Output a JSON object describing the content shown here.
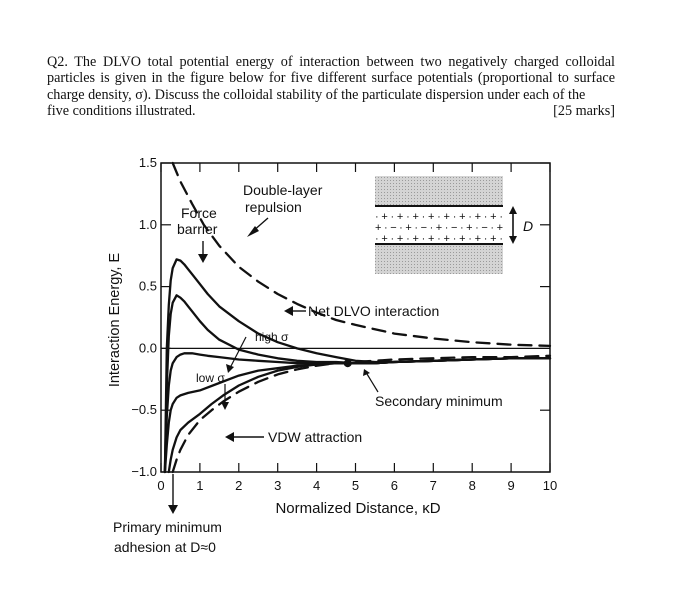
{
  "question": {
    "text": "Q2. The DLVO total potential energy of interaction between two negatively charged colloidal particles is given in the figure below for five different surface potentials (proportional to surface charge density, σ). Discuss the colloidal stability of the particulate dispersion under each of the",
    "last_line": "five conditions illustrated.",
    "marks": "[25 marks]"
  },
  "chart_data": {
    "type": "line",
    "title": "",
    "xlabel": "Normalized Distance, κD",
    "ylabel": "Interaction Energy, E",
    "xlim": [
      0,
      10
    ],
    "ylim": [
      -1.0,
      1.5
    ],
    "xticks": [
      "0",
      "1",
      "2",
      "3",
      "4",
      "5",
      "6",
      "7",
      "8",
      "9",
      "10"
    ],
    "yticks": [
      "1.5",
      "1.0",
      "0.5",
      "0.0",
      "−0.5",
      "−1.0"
    ],
    "ytick_values": [
      1.5,
      1.0,
      0.5,
      0.0,
      -0.5,
      -1.0
    ],
    "grid": false,
    "series": [
      {
        "style": "solid",
        "x": [
          0.1,
          0.15,
          0.2,
          0.25,
          0.3,
          0.4,
          0.5,
          0.6,
          0.7,
          0.8,
          1.0,
          1.2,
          1.5,
          2.0,
          2.5,
          3.0,
          3.5,
          4.0,
          4.5,
          5.0,
          5.5,
          6.0,
          7.0,
          8.0,
          9.0,
          10.0
        ],
        "y": [
          -1.0,
          0.0,
          0.35,
          0.55,
          0.65,
          0.72,
          0.71,
          0.68,
          0.64,
          0.6,
          0.52,
          0.44,
          0.34,
          0.22,
          0.12,
          0.05,
          0.0,
          -0.04,
          -0.07,
          -0.1,
          -0.11,
          -0.11,
          -0.1,
          -0.09,
          -0.08,
          -0.08
        ]
      },
      {
        "style": "solid",
        "x": [
          0.1,
          0.15,
          0.2,
          0.25,
          0.3,
          0.4,
          0.5,
          0.6,
          0.7,
          0.8,
          1.0,
          1.2,
          1.5,
          2.0,
          2.5,
          3.0,
          3.5,
          4.0,
          4.5,
          5.0,
          5.5,
          6.0,
          7.0,
          8.0,
          9.0,
          10.0
        ],
        "y": [
          -1.0,
          -0.3,
          0.1,
          0.28,
          0.37,
          0.43,
          0.41,
          0.38,
          0.34,
          0.3,
          0.22,
          0.15,
          0.07,
          -0.01,
          -0.05,
          -0.08,
          -0.1,
          -0.11,
          -0.11,
          -0.12,
          -0.12,
          -0.11,
          -0.1,
          -0.09,
          -0.08,
          -0.08
        ]
      },
      {
        "style": "solid",
        "x": [
          0.1,
          0.15,
          0.2,
          0.25,
          0.3,
          0.4,
          0.5,
          0.6,
          0.8,
          1.0,
          1.2,
          1.5,
          2.0,
          2.5,
          3.0,
          3.5,
          4.0,
          4.5,
          5.0,
          5.5,
          6.0,
          7.0,
          8.0,
          9.0,
          10.0
        ],
        "y": [
          -1.0,
          -0.55,
          -0.3,
          -0.18,
          -0.12,
          -0.07,
          -0.05,
          -0.04,
          -0.04,
          -0.05,
          -0.06,
          -0.07,
          -0.09,
          -0.1,
          -0.11,
          -0.12,
          -0.12,
          -0.12,
          -0.12,
          -0.12,
          -0.11,
          -0.1,
          -0.09,
          -0.08,
          -0.08
        ]
      },
      {
        "style": "solid",
        "x": [
          0.1,
          0.15,
          0.2,
          0.25,
          0.3,
          0.4,
          0.5,
          0.7,
          1.0,
          1.5,
          2.0,
          2.5,
          3.0,
          3.5,
          4.0,
          4.5,
          5.0,
          5.5,
          6.0,
          7.0,
          8.0,
          9.0,
          10.0
        ],
        "y": [
          -1.0,
          -0.78,
          -0.6,
          -0.5,
          -0.45,
          -0.4,
          -0.38,
          -0.36,
          -0.34,
          -0.28,
          -0.22,
          -0.18,
          -0.16,
          -0.14,
          -0.13,
          -0.12,
          -0.12,
          -0.12,
          -0.11,
          -0.1,
          -0.09,
          -0.08,
          -0.08
        ]
      },
      {
        "style": "solid",
        "x": [
          0.2,
          0.25,
          0.3,
          0.4,
          0.5,
          0.7,
          1.0,
          1.3,
          1.6,
          2.0,
          2.5,
          3.0,
          3.5,
          4.0,
          4.5,
          5.0,
          5.5,
          6.0,
          7.0,
          8.0,
          9.0,
          10.0
        ],
        "y": [
          -1.0,
          -0.9,
          -0.82,
          -0.72,
          -0.66,
          -0.6,
          -0.53,
          -0.45,
          -0.38,
          -0.3,
          -0.23,
          -0.18,
          -0.15,
          -0.13,
          -0.12,
          -0.12,
          -0.12,
          -0.11,
          -0.1,
          -0.09,
          -0.08,
          -0.08
        ]
      },
      {
        "style": "dashed",
        "x": [
          0.3,
          0.5,
          0.8,
          1.1,
          1.5,
          2.0,
          2.5,
          3.0,
          3.5,
          4.0,
          4.5,
          5.0,
          6.0,
          7.0,
          8.0,
          9.0,
          10.0
        ],
        "y": [
          1.5,
          1.35,
          1.17,
          1.0,
          0.83,
          0.66,
          0.54,
          0.44,
          0.36,
          0.29,
          0.23,
          0.19,
          0.12,
          0.08,
          0.05,
          0.03,
          0.02
        ]
      },
      {
        "style": "dashed",
        "x": [
          0.3,
          0.4,
          0.5,
          0.7,
          1.0,
          1.3,
          1.6,
          2.0,
          2.5,
          3.0,
          3.5,
          4.0,
          4.5,
          5.0,
          6.0,
          7.0,
          8.0,
          9.0,
          10.0
        ],
        "y": [
          -1.0,
          -0.9,
          -0.82,
          -0.7,
          -0.58,
          -0.5,
          -0.43,
          -0.35,
          -0.27,
          -0.21,
          -0.17,
          -0.14,
          -0.12,
          -0.11,
          -0.09,
          -0.08,
          -0.07,
          -0.07,
          -0.06
        ]
      }
    ],
    "annotations": {
      "force_barrier": [
        "Force",
        "barrier"
      ],
      "double_layer": [
        "Double-layer",
        "repulsion"
      ],
      "net_dlvo": "Net DLVO interaction",
      "high_sigma": "high σ",
      "low_sigma": "low σ",
      "secondary_minimum": "Secondary minimum",
      "vdw": "VDW attraction",
      "primary_minimum": [
        "Primary minimum",
        "adhesion at D≈0"
      ],
      "inset_d": "D"
    },
    "secondary_minimum_point": {
      "x": 4.8,
      "y": -0.12
    },
    "colors": {
      "ink": "#111111",
      "inset_fill": "#cfcfcf"
    }
  }
}
